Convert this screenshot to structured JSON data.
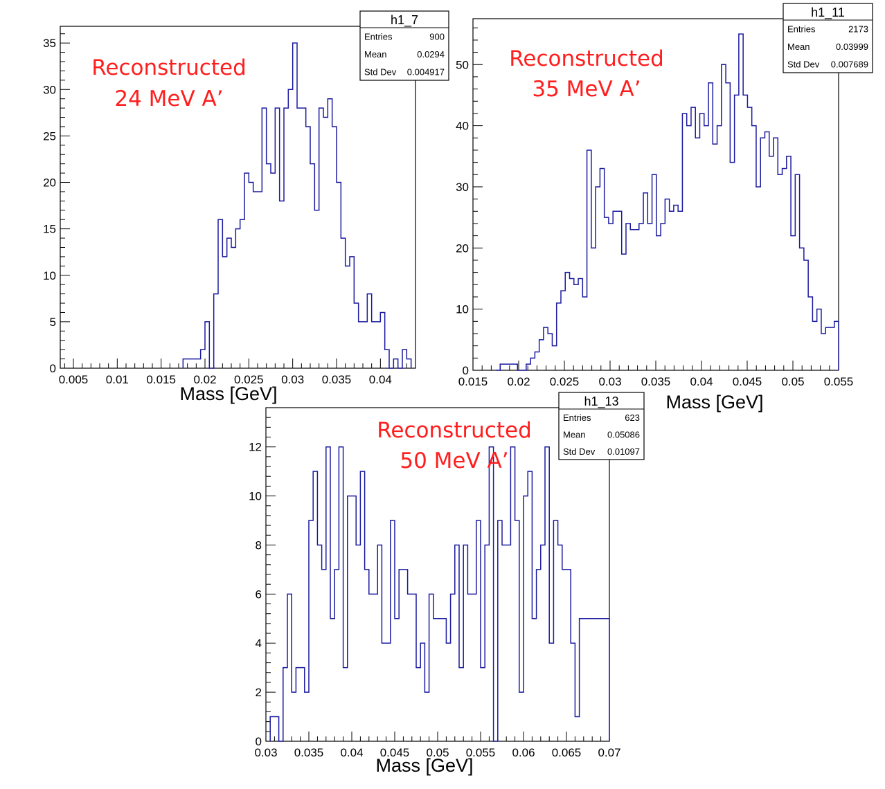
{
  "chart_data": [
    {
      "type": "histogram",
      "stats": {
        "name": "h1_7",
        "labels": [
          "Entries",
          "Mean",
          "Std Dev"
        ],
        "values": [
          "900",
          "0.0294",
          "0.004917"
        ]
      },
      "annotation": [
        "Reconstructed",
        "24 MeV A’"
      ],
      "xlabel": "Mass [GeV]",
      "xlim": [
        0.0035,
        0.044
      ],
      "ylim": [
        0,
        36.8
      ],
      "xticks": [
        0.005,
        0.01,
        0.015,
        0.02,
        0.025,
        0.03,
        0.035,
        0.04
      ],
      "xtick_labels": [
        "0.005",
        "0.01",
        "0.015",
        "0.02",
        "0.025",
        "0.03",
        "0.035",
        "0.04"
      ],
      "yticks": [
        0,
        5,
        10,
        15,
        20,
        25,
        30,
        35
      ],
      "ytick_labels": [
        "0",
        "5",
        "10",
        "15",
        "20",
        "25",
        "30",
        "35"
      ],
      "line_color": "#1a1aa0",
      "bin_edges_range": [
        0.0175,
        0.0435
      ],
      "values": [
        1,
        1,
        1,
        1,
        2,
        5,
        0,
        8,
        16,
        12,
        14,
        13,
        15,
        16,
        21,
        20,
        19,
        19,
        28,
        22,
        21,
        28,
        18,
        28,
        30,
        35,
        28,
        28,
        26,
        22,
        17,
        28,
        27,
        29,
        26,
        20,
        14,
        11,
        12,
        7,
        5,
        5,
        8,
        5,
        5,
        6,
        2,
        0,
        1,
        0,
        2,
        1
      ]
    },
    {
      "type": "histogram",
      "stats": {
        "name": "h1_11",
        "labels": [
          "Entries",
          "Mean",
          "Std Dev"
        ],
        "values": [
          "2173",
          "0.03999",
          "0.007689"
        ]
      },
      "annotation": [
        "Reconstructed",
        "35 MeV A’"
      ],
      "xlabel": "Mass [GeV]",
      "xlim": [
        0.015,
        0.055
      ],
      "ylim": [
        0,
        57.5
      ],
      "xticks": [
        0.015,
        0.02,
        0.025,
        0.03,
        0.035,
        0.04,
        0.045,
        0.05,
        0.055
      ],
      "xtick_labels": [
        "0.015",
        "0.02",
        "0.025",
        "0.03",
        "0.035",
        "0.04",
        "0.045",
        "0.05",
        "0.055"
      ],
      "yticks": [
        0,
        10,
        20,
        30,
        40,
        50
      ],
      "ytick_labels": [
        "0",
        "10",
        "20",
        "30",
        "40",
        "50"
      ],
      "line_color": "#1a1aa0",
      "bin_edges_range": [
        0.0175,
        0.055
      ],
      "values": [
        0,
        1,
        1,
        1,
        1,
        0,
        0,
        1,
        2,
        3,
        5,
        7,
        6,
        4,
        11,
        13,
        16,
        15,
        14,
        15,
        12,
        36,
        20,
        30,
        33,
        25,
        24,
        26,
        26,
        19,
        24,
        23,
        23,
        24,
        29,
        24,
        32,
        22,
        24,
        28,
        26,
        27,
        26,
        42,
        40,
        43,
        38,
        42,
        40,
        47,
        37,
        40,
        50,
        47,
        34,
        45,
        55,
        45,
        43,
        40,
        30,
        38,
        39,
        35,
        38,
        32,
        33,
        35,
        22,
        32,
        20,
        18,
        12,
        8,
        10,
        6,
        7,
        7,
        8
      ]
    },
    {
      "type": "histogram",
      "stats": {
        "name": "h1_13",
        "labels": [
          "Entries",
          "Mean",
          "Std Dev"
        ],
        "values": [
          "623",
          "0.05086",
          "0.01097"
        ]
      },
      "annotation": [
        "Reconstructed",
        "50 MeV A’"
      ],
      "xlabel": "Mass [GeV]",
      "xlim": [
        0.03,
        0.07
      ],
      "ylim": [
        0,
        13.6
      ],
      "xticks": [
        0.03,
        0.035,
        0.04,
        0.045,
        0.05,
        0.055,
        0.06,
        0.065,
        0.07
      ],
      "xtick_labels": [
        "0.03",
        "0.035",
        "0.04",
        "0.045",
        "0.05",
        "0.055",
        "0.06",
        "0.065",
        "0.07"
      ],
      "yticks": [
        0,
        2,
        4,
        6,
        8,
        10,
        12
      ],
      "ytick_labels": [
        "0",
        "2",
        "4",
        "6",
        "8",
        "10",
        "12"
      ],
      "line_color": "#1a1aa0",
      "bin_edges_range": [
        0.0305,
        0.07
      ],
      "values": [
        1,
        1,
        0,
        3,
        6,
        2,
        3,
        3,
        2,
        9,
        11,
        8,
        7,
        12,
        5,
        7,
        12,
        3,
        10,
        10,
        8,
        11,
        7,
        6,
        6,
        8,
        4,
        4,
        9,
        5,
        7,
        7,
        6,
        6,
        3,
        4,
        2,
        6,
        5,
        5,
        5,
        4,
        6,
        8,
        3,
        8,
        6,
        6,
        9,
        3,
        8,
        12,
        0,
        9,
        8,
        8,
        12,
        9,
        2,
        10,
        11,
        5,
        7,
        8,
        12,
        4,
        9,
        8,
        7,
        7,
        4,
        1,
        5,
        5,
        5,
        5,
        5,
        5,
        5
      ]
    }
  ]
}
